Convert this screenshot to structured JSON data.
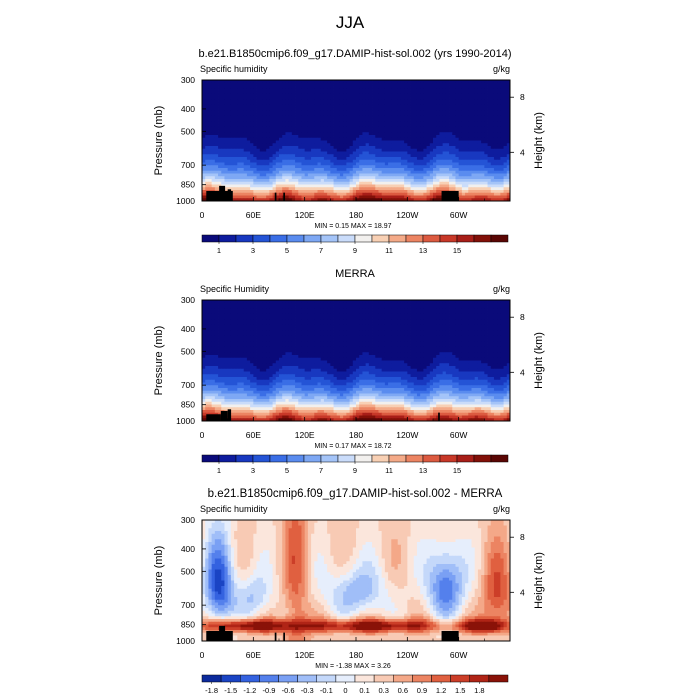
{
  "figure": {
    "season": "JJA"
  },
  "chart_data": [
    {
      "type": "heatmap",
      "title": "b.e21.B1850cmip6.f09_g17.DAMIP-hist-sol.002 (yrs 1990-2014)",
      "left_label": "Specific humidity",
      "units": "g/kg",
      "xlabel": "",
      "ylabel": "Pressure (mb)",
      "ylabel_right": "Height (km)",
      "x_ticks": [
        "0",
        "60E",
        "120E",
        "180",
        "120W",
        "60W"
      ],
      "y_ticks": [
        "300",
        "400",
        "500",
        "700",
        "850",
        "1000"
      ],
      "y_right_ticks": [
        "8",
        "4"
      ],
      "stats": "MIN =   0.15  MAX =  18.97",
      "min": 0.15,
      "max": 18.97,
      "colorbar_labels": [
        "1",
        "3",
        "5",
        "7",
        "9",
        "11",
        "13",
        "15"
      ],
      "dip_lons": [
        40,
        120,
        305
      ],
      "surface_blocks": [
        {
          "lon0": 5,
          "lon1": 36,
          "p_top": 905
        },
        {
          "lon0": 20,
          "lon1": 27,
          "p_top": 860
        },
        {
          "lon0": 30,
          "lon1": 34,
          "p_top": 890
        },
        {
          "lon0": 85,
          "lon1": 87,
          "p_top": 920
        },
        {
          "lon0": 95,
          "lon1": 97,
          "p_top": 920
        },
        {
          "lon0": 280,
          "lon1": 300,
          "p_top": 905
        }
      ]
    },
    {
      "type": "heatmap",
      "title": "MERRA",
      "left_label": "Specific Humidity",
      "units": "g/kg",
      "xlabel": "",
      "ylabel": "Pressure (mb)",
      "ylabel_right": "Height (km)",
      "x_ticks": [
        "0",
        "60E",
        "120E",
        "180",
        "120W",
        "60W"
      ],
      "y_ticks": [
        "300",
        "400",
        "500",
        "700",
        "850",
        "1000"
      ],
      "y_right_ticks": [
        "8",
        "4"
      ],
      "stats": "MIN =   0.17  MAX =  18.72",
      "min": 0.17,
      "max": 18.72,
      "colorbar_labels": [
        "1",
        "3",
        "5",
        "7",
        "9",
        "11",
        "13",
        "15"
      ],
      "dip_lons": [
        40,
        120,
        290
      ],
      "surface_blocks": [
        {
          "lon0": 5,
          "lon1": 22,
          "p_top": 935
        },
        {
          "lon0": 22,
          "lon1": 30,
          "p_top": 905
        },
        {
          "lon0": 30,
          "lon1": 34,
          "p_top": 890
        },
        {
          "lon0": 276,
          "lon1": 278,
          "p_top": 920
        }
      ]
    },
    {
      "type": "heatmap",
      "title": "b.e21.B1850cmip6.f09_g17.DAMIP-hist-sol.002 - MERRA",
      "left_label": "Specific humidity",
      "units": "g/kg",
      "xlabel": "",
      "ylabel": "Pressure (mb)",
      "ylabel_right": "Height (km)",
      "x_ticks": [
        "0",
        "60E",
        "120E",
        "180",
        "120W",
        "60W"
      ],
      "y_ticks": [
        "300",
        "400",
        "500",
        "700",
        "850",
        "1000"
      ],
      "y_right_ticks": [
        "8",
        "4"
      ],
      "stats": "MIN =  -1.38  MAX =   3.26",
      "min": -1.38,
      "max": 3.26,
      "colorbar_labels": [
        "-1.8",
        "-1.5",
        "-1.2",
        "-0.9",
        "-0.6",
        "-0.3",
        "-0.1",
        "0",
        "0.1",
        "0.3",
        "0.6",
        "0.9",
        "1.2",
        "1.5",
        "1.8"
      ],
      "surface_blocks": [
        {
          "lon0": 5,
          "lon1": 36,
          "p_top": 905
        },
        {
          "lon0": 20,
          "lon1": 27,
          "p_top": 860
        },
        {
          "lon0": 85,
          "lon1": 87,
          "p_top": 920
        },
        {
          "lon0": 95,
          "lon1": 97,
          "p_top": 920
        },
        {
          "lon0": 280,
          "lon1": 300,
          "p_top": 905
        }
      ]
    }
  ],
  "palettes": {
    "full": [
      "#0a0a7a",
      "#0e1c9e",
      "#1838c0",
      "#2454d6",
      "#3a6ee6",
      "#5a8cef",
      "#7ea8f4",
      "#a4c4f8",
      "#cadcfa",
      "#f2f0ee",
      "#f8d0b4",
      "#f4aa88",
      "#ec8462",
      "#dc5a40",
      "#c83828",
      "#a81e18",
      "#821008",
      "#5a0604"
    ],
    "diff": [
      "#0c2a9c",
      "#1a44c4",
      "#3462e0",
      "#5480ec",
      "#7aa0f4",
      "#a0bef8",
      "#c4d8fa",
      "#e6eefc",
      "#fbe6dc",
      "#f8cab4",
      "#f4a888",
      "#ec8462",
      "#e06040",
      "#cc3e28",
      "#b02416",
      "#8a1208"
    ]
  }
}
